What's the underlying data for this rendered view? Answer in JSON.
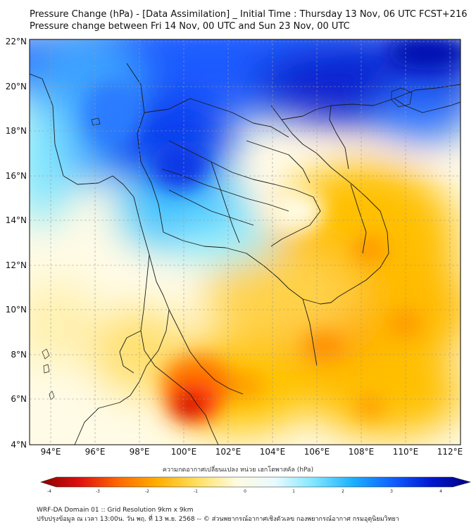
{
  "title": {
    "line1": "Pressure Change (hPa) - [Data Assimilation] _ Initial Time : Thursday 13 Nov, 06 UTC FCST+216",
    "line2": "Pressure change between Fri 14 Nov, 00 UTC and Sun 23 Nov, 00 UTC"
  },
  "map": {
    "lat_labels": [
      "22°N",
      "20°N",
      "18°N",
      "16°N",
      "14°N",
      "12°N",
      "10°N",
      "8°N",
      "6°N",
      "4°N"
    ],
    "lon_labels": [
      "94°E",
      "96°E",
      "98°E",
      "100°E",
      "102°E",
      "104°E",
      "106°E",
      "108°E",
      "110°E",
      "112°E"
    ],
    "lat_range": [
      4,
      22
    ],
    "lon_range": [
      93,
      112.5
    ]
  },
  "colorbar": {
    "label": "ความกดอากาศเปลี่ยนแปลง หน่วย เฮกโตพาสคัล (hPa)",
    "tick_labels": [
      "-4",
      "-3",
      "-2",
      "-1",
      "0",
      "1",
      "2",
      "3",
      "4"
    ],
    "range": [
      -4,
      4
    ],
    "colors": [
      "#8b0000",
      "#e01010",
      "#ff6a00",
      "#ffb000",
      "#ffe060",
      "#fffbe0",
      "#e8fbff",
      "#7fe6ff",
      "#1ab0ff",
      "#1060ff",
      "#0018d0",
      "#000080"
    ]
  },
  "footer": {
    "line1": "WRF-DA Domain 01 :: Grid Resolution 9km x 9km",
    "line2": "ปรับปรุงข้อมูล ณ เวลา 13:00น. วัน พฤ. ที่ 13 พ.ย. 2568 -- © ส่วนพยากรณ์อากาศเชิงตัวเลข กองพยากรณ์อากาศ กรมอุตุนิยมวิทยา"
  }
}
